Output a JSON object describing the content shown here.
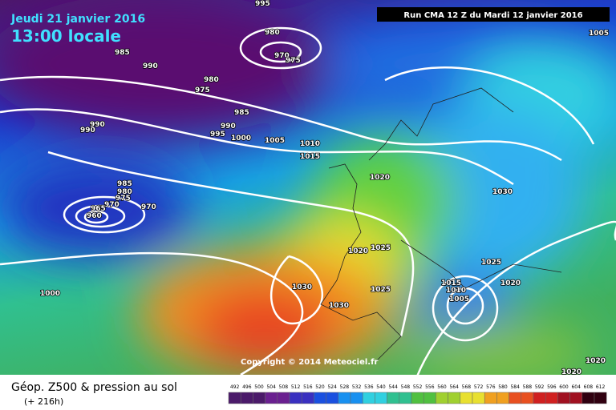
{
  "header": {
    "date": "Jeudi 21 janvier 2016",
    "time": "13:00 locale",
    "run": "Run CMA 12 Z du Mardi 12 janvier 2016"
  },
  "copyright": "Copyright © 2014 Meteociel.fr",
  "footer": {
    "title": "Géop. Z500 & pression au sol",
    "lead": "(+ 216h)"
  },
  "scale": [
    492,
    496,
    500,
    504,
    508,
    512,
    516,
    520,
    524,
    528,
    532,
    536,
    540,
    544,
    548,
    552,
    556,
    560,
    564,
    568,
    572,
    576,
    580,
    584,
    588,
    592,
    596,
    600,
    604,
    608,
    612
  ],
  "isobar_labels": [
    995,
    980,
    970,
    975,
    985,
    990,
    980,
    975,
    1005,
    990,
    990,
    985,
    990,
    995,
    1000,
    1005,
    1010,
    1015,
    1020,
    1030,
    985,
    980,
    975,
    970,
    965,
    960,
    970,
    1020,
    1025,
    1030,
    1030,
    1025,
    1025,
    1015,
    1010,
    1005,
    1020,
    1000,
    1020,
    1020
  ]
}
